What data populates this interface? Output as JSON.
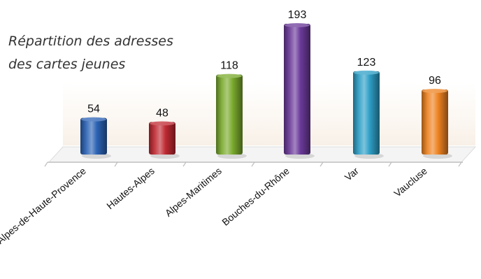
{
  "chart_data": {
    "type": "bar",
    "title": [
      "Répartition des adresses",
      "des cartes jeunes"
    ],
    "categories": [
      "Alpes-de-Haute-Provence",
      "Hautes-Alpes",
      "Alpes-Maritimes",
      "Bouches-du-Rhône",
      "Var",
      "Vaucluse"
    ],
    "values": [
      54,
      48,
      118,
      193,
      123,
      96
    ],
    "colors": [
      "#2b63b5",
      "#c02a33",
      "#7aab2e",
      "#6b3a9a",
      "#2e9fc6",
      "#ee8321"
    ],
    "xlabel": "",
    "ylabel": "",
    "ylim": [
      0,
      200
    ],
    "grid": false,
    "legend": "none"
  }
}
